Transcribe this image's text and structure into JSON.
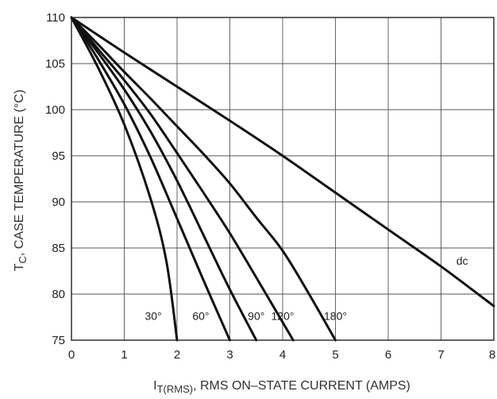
{
  "chart_data": {
    "type": "line",
    "xlabel_main": "I",
    "xlabel_sub": "T(RMS)",
    "xlabel_rest": ", RMS ON–STATE CURRENT (AMPS)",
    "ylabel_main": "T",
    "ylabel_sub": "C",
    "ylabel_rest": ", CASE TEMPERATURE (°C)",
    "xlim": [
      0,
      8
    ],
    "ylim": [
      75,
      110
    ],
    "x_ticks": [
      "0",
      "1",
      "2",
      "3",
      "4",
      "5",
      "6",
      "7",
      "8"
    ],
    "y_ticks": [
      "110",
      "105",
      "100",
      "95",
      "90",
      "85",
      "80",
      "75"
    ],
    "grid": true,
    "series": [
      {
        "name": "30°",
        "points": [
          [
            0,
            110
          ],
          [
            0.5,
            104.6
          ],
          [
            1,
            98.4
          ],
          [
            1.5,
            90.3
          ],
          [
            1.8,
            83.5
          ],
          [
            2.0,
            75
          ]
        ]
      },
      {
        "name": "60°",
        "points": [
          [
            0,
            110
          ],
          [
            0.5,
            105.5
          ],
          [
            1,
            100.6
          ],
          [
            1.5,
            94.8
          ],
          [
            2,
            88.2
          ],
          [
            2.5,
            81.5
          ],
          [
            3.0,
            75
          ]
        ]
      },
      {
        "name": "90°",
        "points": [
          [
            0,
            110
          ],
          [
            0.5,
            106.2
          ],
          [
            1,
            102.2
          ],
          [
            1.5,
            97.6
          ],
          [
            2,
            92.3
          ],
          [
            2.5,
            86.4
          ],
          [
            3,
            80.5
          ],
          [
            3.5,
            75
          ]
        ]
      },
      {
        "name": "120°",
        "points": [
          [
            0,
            110
          ],
          [
            0.5,
            106.6
          ],
          [
            1,
            103.2
          ],
          [
            1.5,
            99.5
          ],
          [
            2,
            95.3
          ],
          [
            2.5,
            91.0
          ],
          [
            3,
            86.6
          ],
          [
            3.5,
            81.8
          ],
          [
            4.2,
            75
          ]
        ]
      },
      {
        "name": "180°",
        "points": [
          [
            0,
            110
          ],
          [
            0.5,
            107.1
          ],
          [
            1,
            104.1
          ],
          [
            1.5,
            101.2
          ],
          [
            2,
            98.2
          ],
          [
            2.5,
            95.2
          ],
          [
            3,
            92.0
          ],
          [
            3.5,
            88.3
          ],
          [
            4,
            84.7
          ],
          [
            4.5,
            80.0
          ],
          [
            5,
            75
          ]
        ]
      },
      {
        "name": "dc",
        "points": [
          [
            0,
            110
          ],
          [
            1,
            106.2
          ],
          [
            2,
            102.5
          ],
          [
            3,
            98.8
          ],
          [
            4,
            95.0
          ],
          [
            5,
            91.0
          ],
          [
            6,
            87.0
          ],
          [
            7,
            83.0
          ],
          [
            8,
            78.7
          ]
        ]
      }
    ],
    "curve_labels": [
      {
        "text": "30°",
        "x": 1.55,
        "y": 77.2
      },
      {
        "text": "60°",
        "x": 2.45,
        "y": 77.2
      },
      {
        "text": "90°",
        "x": 3.5,
        "y": 77.2
      },
      {
        "text": "120°",
        "x": 4.0,
        "y": 77.2
      },
      {
        "text": "180°",
        "x": 5.0,
        "y": 77.2
      },
      {
        "text": "dc",
        "x": 7.4,
        "y": 83.2
      }
    ]
  }
}
